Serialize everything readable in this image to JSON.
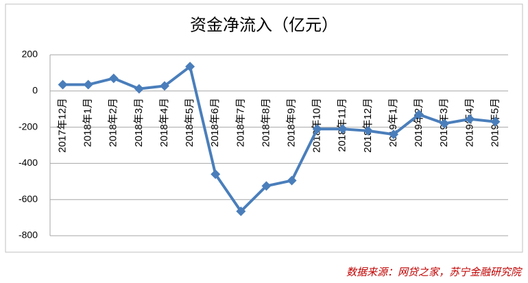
{
  "chart_data": {
    "type": "line",
    "title": "资金净流入（亿元）",
    "categories": [
      "2017年12月",
      "2018年1月",
      "2018年2月",
      "2018年3月",
      "2018年4月",
      "2018年5月",
      "2018年6月",
      "2018年7月",
      "2018年8月",
      "2018年9月",
      "2018年10月",
      "2018年11月",
      "2018年12月",
      "2019年1月",
      "2019年2月",
      "2019年3月",
      "2019年4月",
      "2019年5月"
    ],
    "values": [
      35,
      35,
      70,
      12,
      28,
      135,
      -460,
      -665,
      -525,
      -495,
      -210,
      -210,
      -220,
      -240,
      -130,
      -180,
      -155,
      -170
    ],
    "color": "#4a7ebb",
    "ylim": [
      -800,
      200
    ],
    "yticks": [
      -800,
      -600,
      -400,
      -200,
      0,
      200
    ],
    "grid": true,
    "source": "数据来源：网贷之家，苏宁金融研究院"
  }
}
